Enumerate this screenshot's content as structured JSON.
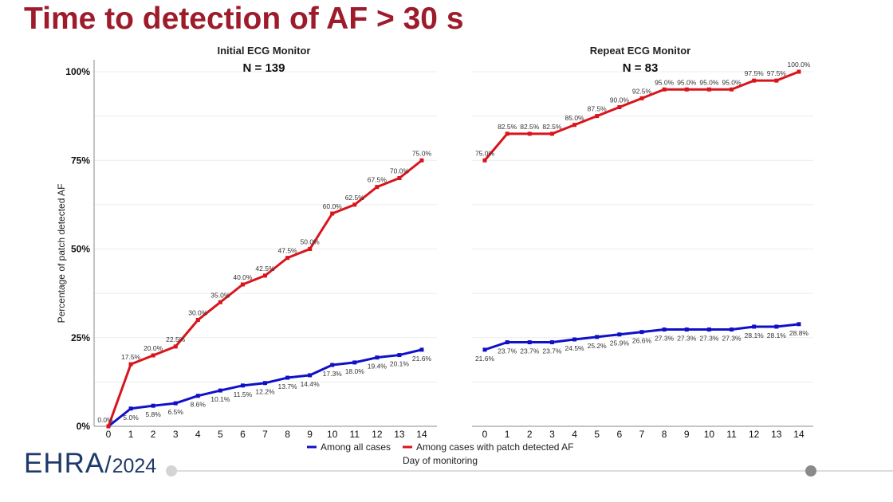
{
  "slide_title": "Time to detection of AF > 30 s",
  "logo": {
    "text": "EHRA",
    "year": "2024"
  },
  "colors": {
    "title": "#9e1b2b",
    "red_series": "#d9141b",
    "blue_series": "#1010c8"
  },
  "chart_data": [
    {
      "type": "line",
      "title": "Initial ECG Monitor",
      "subtitle": "N = 139",
      "xlabel": "Day of monitoring",
      "ylabel": "Percentage of patch detected AF",
      "x": [
        0,
        1,
        2,
        3,
        4,
        5,
        6,
        7,
        8,
        9,
        10,
        11,
        12,
        13,
        14
      ],
      "ylim": [
        0,
        100
      ],
      "yticks": [
        "0%",
        "25%",
        "50%",
        "75%",
        "100%"
      ],
      "grid": true,
      "legend_position": "bottom",
      "series": [
        {
          "name": "Among all cases",
          "color": "#1010c8",
          "values": [
            0,
            5.0,
            5.8,
            6.5,
            8.6,
            10.1,
            11.5,
            12.2,
            13.7,
            14.4,
            17.3,
            18.0,
            19.4,
            20.1,
            21.6
          ],
          "labels": [
            "",
            "5.0%",
            "5.8%",
            "6.5%",
            "8.6%",
            "10.1%",
            "11.5%",
            "12.2%",
            "13.7%",
            "14.4%",
            "17.3%",
            "18.0%",
            "19.4%",
            "20.1%",
            "21.6%"
          ]
        },
        {
          "name": "Among cases with patch detected AF",
          "color": "#d9141b",
          "values": [
            0,
            17.5,
            20.0,
            22.5,
            30.0,
            35.0,
            40.0,
            42.5,
            47.5,
            50.0,
            60.0,
            62.5,
            67.5,
            70.0,
            75.0
          ],
          "labels": [
            "0.0%",
            "17.5%",
            "20.0%",
            "22.5%",
            "30.0%",
            "35.0%",
            "40.0%",
            "42.5%",
            "47.5%",
            "50.0%",
            "60.0%",
            "62.5%",
            "67.5%",
            "70.0%",
            "75.0%"
          ]
        }
      ]
    },
    {
      "type": "line",
      "title": "Repeat ECG Monitor",
      "subtitle": "N = 83",
      "x": [
        0,
        1,
        2,
        3,
        4,
        5,
        6,
        7,
        8,
        9,
        10,
        11,
        12,
        13,
        14
      ],
      "ylim": [
        0,
        100
      ],
      "grid": true,
      "series": [
        {
          "name": "Among all cases",
          "color": "#1010c8",
          "values": [
            21.6,
            23.7,
            23.7,
            23.7,
            24.5,
            25.2,
            25.9,
            26.6,
            27.3,
            27.3,
            27.3,
            27.3,
            28.1,
            28.1,
            28.8
          ],
          "labels": [
            "21.6%",
            "23.7%",
            "23.7%",
            "23.7%",
            "24.5%",
            "25.2%",
            "25.9%",
            "26.6%",
            "27.3%",
            "27.3%",
            "27.3%",
            "27.3%",
            "28.1%",
            "28.1%",
            "28.8%"
          ]
        },
        {
          "name": "Among cases with patch detected AF",
          "color": "#d9141b",
          "values": [
            75.0,
            82.5,
            82.5,
            82.5,
            85.0,
            87.5,
            90.0,
            92.5,
            95.0,
            95.0,
            95.0,
            95.0,
            97.5,
            97.5,
            100.0
          ],
          "labels": [
            "75.0%",
            "82.5%",
            "82.5%",
            "82.5%",
            "85.0%",
            "87.5%",
            "90.0%",
            "92.5%",
            "95.0%",
            "95.0%",
            "95.0%",
            "95.0%",
            "97.5%",
            "97.5%",
            "100.0%"
          ]
        }
      ]
    }
  ]
}
